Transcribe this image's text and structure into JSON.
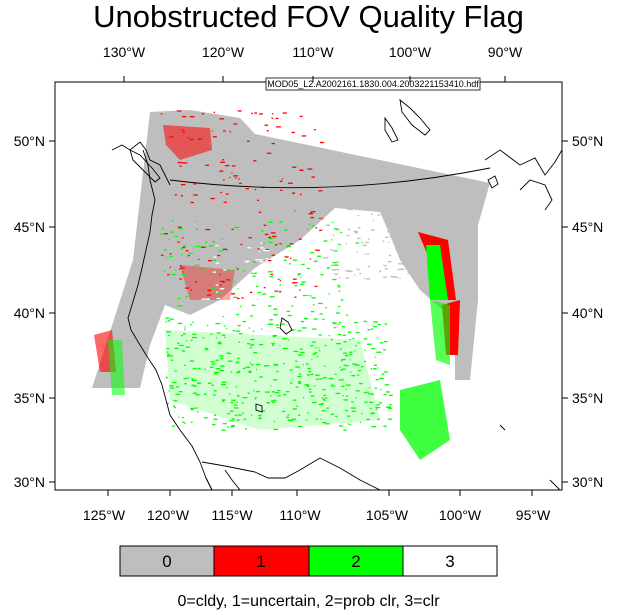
{
  "title": "Unobstructed FOV Quality Flag",
  "file_label": "MOD05_L2.A2002161.1830.004.2003221153410.hdf",
  "top_lon_labels": [
    "130°W",
    "120°W",
    "110°W",
    "100°W",
    "90°W"
  ],
  "bottom_lon_labels": [
    "125°W",
    "120°W",
    "115°W",
    "110°W",
    "105°W",
    "100°W",
    "95°W"
  ],
  "left_lat_labels": [
    "50°N",
    "45°N",
    "40°N",
    "35°N",
    "30°N"
  ],
  "right_lat_labels": [
    "50°N",
    "45°N",
    "40°N",
    "35°N",
    "30°N"
  ],
  "legend": {
    "items": [
      {
        "label": "0",
        "color": "#bebebe"
      },
      {
        "label": "1",
        "color": "#ff0000"
      },
      {
        "label": "2",
        "color": "#00ff00"
      },
      {
        "label": "3",
        "color": "#ffffff"
      }
    ],
    "caption": "0=cldy, 1=uncertain, 2=prob clr, 3=clr"
  }
}
